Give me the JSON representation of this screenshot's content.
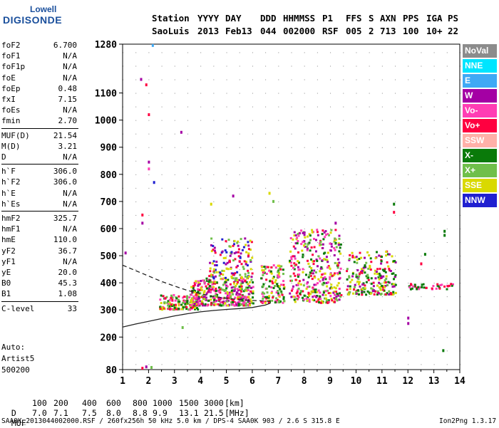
{
  "logo": {
    "top": "Lowell",
    "bottom": "DIGISONDE"
  },
  "header": {
    "labels": [
      "Station",
      "YYYY",
      "DAY",
      "DDD",
      "HHMMSS",
      "P1",
      "FFS",
      "S",
      "AXN",
      "PPS",
      "IGA",
      "PS"
    ],
    "values": [
      "SaoLuis",
      "2013",
      "Feb13",
      "044",
      "002000",
      "RSF",
      "005",
      "2",
      "713",
      "100",
      "10+",
      "22"
    ]
  },
  "params": [
    {
      "name": "foF2",
      "value": "6.700"
    },
    {
      "name": "foF1",
      "value": "N/A"
    },
    {
      "name": "foF1p",
      "value": "N/A"
    },
    {
      "name": "foE",
      "value": "N/A"
    },
    {
      "name": "foEp",
      "value": "0.48"
    },
    {
      "name": "fxI",
      "value": "7.15"
    },
    {
      "name": "foEs",
      "value": "N/A"
    },
    {
      "name": "fmin",
      "value": "2.70"
    },
    {
      "name": "MUF(D)",
      "value": "21.54"
    },
    {
      "name": "M(D)",
      "value": "3.21"
    },
    {
      "name": "D",
      "value": "N/A"
    },
    {
      "name": "h`F",
      "value": "306.0"
    },
    {
      "name": "h`F2",
      "value": "306.0"
    },
    {
      "name": "h`E",
      "value": "N/A"
    },
    {
      "name": "h`Es",
      "value": "N/A"
    },
    {
      "name": "hmF2",
      "value": "325.7"
    },
    {
      "name": "hmF1",
      "value": "N/A"
    },
    {
      "name": "hmE",
      "value": "110.0"
    },
    {
      "name": "yF2",
      "value": "36.7"
    },
    {
      "name": "yF1",
      "value": "N/A"
    },
    {
      "name": "yE",
      "value": "20.0"
    },
    {
      "name": "B0",
      "value": "45.3"
    },
    {
      "name": "B1",
      "value": "1.08"
    },
    {
      "name": "C-level",
      "value": "33"
    }
  ],
  "autoscale": {
    "line1": "Auto:",
    "line2": "Artist5",
    "line3": "500200"
  },
  "legend": [
    {
      "label": "NoVal",
      "color": "#8c8c8c"
    },
    {
      "label": "NNE",
      "color": "#00e5ff"
    },
    {
      "label": "E",
      "color": "#3fa9f5"
    },
    {
      "label": "W",
      "color": "#a400a4"
    },
    {
      "label": "Vo-",
      "color": "#ff3db4"
    },
    {
      "label": "Vo+",
      "color": "#ff0040"
    },
    {
      "label": "SSW",
      "color": "#ffb0a8"
    },
    {
      "label": "X-",
      "color": "#0a7a0a"
    },
    {
      "label": "X+",
      "color": "#6fbf4a"
    },
    {
      "label": "SSE",
      "color": "#d9d900"
    },
    {
      "label": "NNW",
      "color": "#2020d0"
    }
  ],
  "muf_table": {
    "d_label": "D",
    "d_values": [
      "100",
      "200",
      "400",
      "600",
      "800",
      "1000",
      "1500",
      "3000"
    ],
    "d_unit": "[km]",
    "m_label": "MUF",
    "m_values": [
      "7.0",
      "7.1",
      "7.5",
      "8.0",
      "8.8",
      "9.9",
      "13.1",
      "21.5"
    ],
    "m_unit": "[MHz]"
  },
  "footer": {
    "left": "SAA0K_2013044002000.RSF / 260fx256h 50 kHz 5.0 km / DPS-4 SAA0K 903 / 2.6 S 315.8 E",
    "right": "Ion2Png 1.3.17"
  },
  "chart_data": {
    "type": "scatter",
    "x_ticks": [
      "1",
      "2",
      "3",
      "4",
      "5",
      "6",
      "7",
      "8",
      "9",
      "10",
      "11",
      "12",
      "13",
      "14"
    ],
    "y_ticks": [
      "80",
      "200",
      "300",
      "400",
      "500",
      "600",
      "700",
      "800",
      "900",
      "1000",
      "1100",
      "1280"
    ],
    "xlim": [
      1,
      14
    ],
    "ylim": [
      80,
      1280
    ],
    "clusters": [
      {
        "x": [
          2.4,
          3.9
        ],
        "y": [
          305,
          360
        ],
        "n": 160,
        "colors": [
          "#ff0040",
          "#ff3db4",
          "#0a7a0a",
          "#6fbf4a",
          "#d9d900"
        ]
      },
      {
        "x": [
          3.6,
          6.0
        ],
        "y": [
          320,
          420
        ],
        "n": 380,
        "colors": [
          "#ff0040",
          "#ff3db4",
          "#d9d900",
          "#6fbf4a",
          "#0a7a0a",
          "#a400a4"
        ]
      },
      {
        "x": [
          4.3,
          6.0
        ],
        "y": [
          420,
          570
        ],
        "n": 140,
        "colors": [
          "#d9d900",
          "#a400a4",
          "#ff0040",
          "#6fbf4a",
          "#2020d0"
        ]
      },
      {
        "x": [
          6.3,
          7.2
        ],
        "y": [
          330,
          470
        ],
        "n": 130,
        "colors": [
          "#d9d900",
          "#ff0040",
          "#6fbf4a",
          "#ff3db4",
          "#0a7a0a"
        ]
      },
      {
        "x": [
          7.4,
          9.4
        ],
        "y": [
          330,
          600
        ],
        "n": 360,
        "colors": [
          "#d9d900",
          "#ff0040",
          "#6fbf4a",
          "#a400a4",
          "#0a7a0a",
          "#ff3db4"
        ]
      },
      {
        "x": [
          9.6,
          11.5
        ],
        "y": [
          360,
          520
        ],
        "n": 220,
        "colors": [
          "#d9d900",
          "#ff0040",
          "#6fbf4a",
          "#a400a4",
          "#0a7a0a"
        ]
      },
      {
        "x": [
          12.0,
          13.7
        ],
        "y": [
          380,
          400
        ],
        "n": 40,
        "colors": [
          "#ff0040",
          "#0a7a0a",
          "#ff3db4"
        ]
      }
    ],
    "sparse_points": [
      {
        "x": 1.7,
        "y": 1150,
        "color": "#a400a4"
      },
      {
        "x": 1.9,
        "y": 1130,
        "color": "#ff0040"
      },
      {
        "x": 2.0,
        "y": 1020,
        "color": "#ff0040"
      },
      {
        "x": 2.0,
        "y": 845,
        "color": "#a400a4"
      },
      {
        "x": 2.0,
        "y": 820,
        "color": "#ff3db4"
      },
      {
        "x": 2.2,
        "y": 770,
        "color": "#2020d0"
      },
      {
        "x": 3.25,
        "y": 955,
        "color": "#a400a4"
      },
      {
        "x": 2.15,
        "y": 1275,
        "color": "#3fa9f5"
      },
      {
        "x": 1.75,
        "y": 650,
        "color": "#ff0040"
      },
      {
        "x": 1.75,
        "y": 620,
        "color": "#a400a4"
      },
      {
        "x": 1.1,
        "y": 510,
        "color": "#a400a4"
      },
      {
        "x": 1.9,
        "y": 90,
        "color": "#a400a4"
      },
      {
        "x": 1.75,
        "y": 85,
        "color": "#ff0040"
      },
      {
        "x": 2.1,
        "y": 88,
        "color": "#6fbf4a"
      },
      {
        "x": 4.4,
        "y": 690,
        "color": "#d9d900"
      },
      {
        "x": 5.25,
        "y": 720,
        "color": "#a400a4"
      },
      {
        "x": 6.65,
        "y": 730,
        "color": "#d9d900"
      },
      {
        "x": 6.8,
        "y": 700,
        "color": "#6fbf4a"
      },
      {
        "x": 9.2,
        "y": 620,
        "color": "#a400a4"
      },
      {
        "x": 11.45,
        "y": 690,
        "color": "#0a7a0a"
      },
      {
        "x": 11.45,
        "y": 660,
        "color": "#ff0040"
      },
      {
        "x": 12.0,
        "y": 270,
        "color": "#a400a4"
      },
      {
        "x": 12.0,
        "y": 250,
        "color": "#a400a4"
      },
      {
        "x": 12.5,
        "y": 470,
        "color": "#ff0040"
      },
      {
        "x": 12.65,
        "y": 505,
        "color": "#0a7a0a"
      },
      {
        "x": 13.35,
        "y": 150,
        "color": "#0a7a0a"
      },
      {
        "x": 13.4,
        "y": 575,
        "color": "#0a7a0a"
      },
      {
        "x": 13.4,
        "y": 590,
        "color": "#0a7a0a"
      },
      {
        "x": 3.3,
        "y": 235,
        "color": "#6fbf4a"
      }
    ],
    "traces": [
      {
        "style": "solid",
        "x": [
          1.0,
          1.5,
          2.0,
          2.5,
          3.0,
          3.5,
          4.0,
          4.5,
          5.0,
          5.5,
          6.0,
          6.5,
          6.7
        ],
        "y": [
          237,
          248,
          258,
          268,
          278,
          286,
          293,
          298,
          302,
          305,
          309,
          318,
          325
        ]
      },
      {
        "style": "dashed",
        "x": [
          1.0,
          1.5,
          2.0,
          2.5,
          3.0,
          3.5,
          4.0,
          4.5,
          5.0,
          5.5,
          6.0,
          6.5,
          6.7
        ],
        "y": [
          465,
          445,
          425,
          405,
          388,
          372,
          360,
          350,
          343,
          338,
          335,
          333,
          332
        ]
      }
    ],
    "grid": true
  }
}
